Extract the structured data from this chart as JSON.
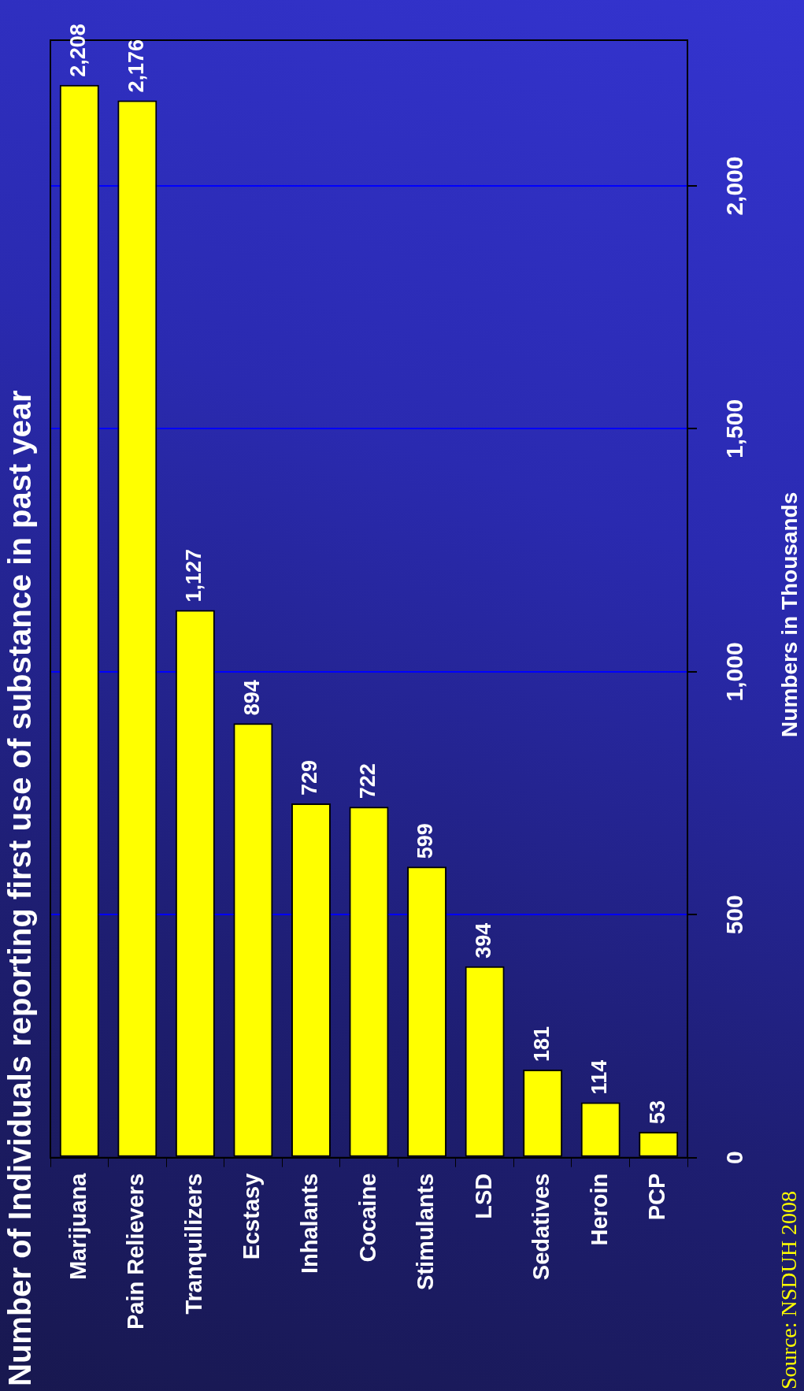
{
  "chart_data": {
    "type": "bar",
    "title": "Number of Individuals reporting first use of substance in past year",
    "ylabel": "Numbers in Thousands",
    "categories": [
      "Marijuana",
      "Pain Relievers",
      "Tranquilizers",
      "Ecstasy",
      "Inhalants",
      "Cocaine",
      "Stimulants",
      "LSD",
      "Sedatives",
      "Heroin",
      "PCP"
    ],
    "values": [
      2208,
      2176,
      1127,
      894,
      729,
      722,
      599,
      394,
      181,
      114,
      53
    ],
    "value_labels": [
      "2,208",
      "2,176",
      "1,127",
      "894",
      "729",
      "722",
      "599",
      "394",
      "181",
      "114",
      "53"
    ],
    "color": "#ffff00",
    "ylim": [
      0,
      2300
    ],
    "yticks": [
      0,
      {
        "value": 500,
        "label": "500"
      },
      {
        "value": 1000,
        "label": "1,000"
      },
      {
        "value": 1500,
        "label": "1,500"
      },
      {
        "value": 2000,
        "label": "2,000"
      }
    ],
    "grid": "y",
    "legend": false,
    "annotations": [
      "Source: NSDUH 2008"
    ]
  }
}
